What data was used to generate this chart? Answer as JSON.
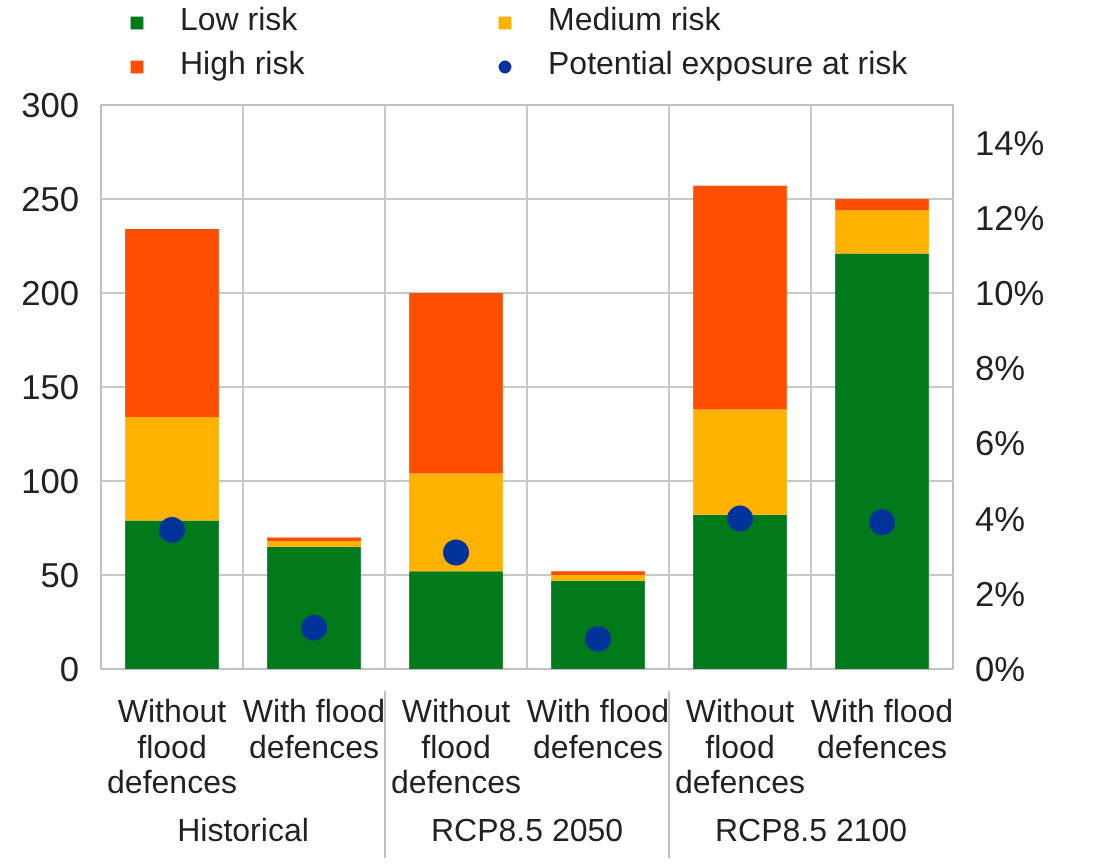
{
  "chart_data": {
    "type": "bar",
    "stacked": true,
    "categories": [
      "Without flood defences",
      "With flood defences",
      "Without flood defences",
      "With flood defences",
      "Without flood defences",
      "With flood defences"
    ],
    "annotations": [
      "Historical",
      "RCP8.5 2050",
      "RCP8.5 2100"
    ],
    "series": [
      {
        "name": "Low risk",
        "color": "#007a1a",
        "values": [
          79,
          65,
          52,
          47,
          82,
          221
        ]
      },
      {
        "name": "Medium risk",
        "color": "#ffb300",
        "values": [
          55,
          3,
          52,
          3,
          56,
          23
        ]
      },
      {
        "name": "High risk",
        "color": "#ff4e00",
        "values": [
          100,
          2,
          96,
          2,
          119,
          6
        ]
      },
      {
        "name": "Potential exposure at risk",
        "type": "scatter",
        "axis": "y2",
        "marker": "circle",
        "color": "#003399",
        "values": [
          3.7,
          1.1,
          3.1,
          0.8,
          4.0,
          3.9
        ]
      }
    ],
    "ylim": [
      0,
      300
    ],
    "yticks": [
      0,
      50,
      100,
      150,
      200,
      250,
      300
    ],
    "y2lim": [
      0,
      15
    ],
    "y2ticks": [
      {
        "value": 0,
        "label": "0%"
      },
      {
        "value": 2,
        "label": "2%"
      },
      {
        "value": 4,
        "label": "4%"
      },
      {
        "value": 6,
        "label": "6%"
      },
      {
        "value": 8,
        "label": "8%"
      },
      {
        "value": 10,
        "label": "10%"
      },
      {
        "value": 12,
        "label": "12%"
      },
      {
        "value": 14,
        "label": "14%"
      }
    ],
    "grid": true,
    "legend": "top"
  }
}
